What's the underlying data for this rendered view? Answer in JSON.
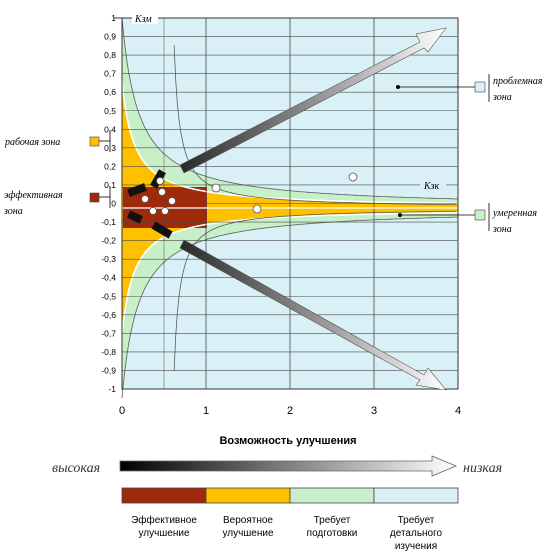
{
  "x_ticks": [
    "0",
    "1",
    "2",
    "3",
    "4"
  ],
  "y_ticks": [
    "1",
    "0,9",
    "0,8",
    "0,7",
    "0,6",
    "0,5",
    "0,4",
    "0,3",
    "0,2",
    "0,1",
    "0",
    "-0,1",
    "-0,2",
    "-0,3",
    "-0,4",
    "-0,5",
    "-0,6",
    "-0,7",
    "-0,8",
    "-0,9",
    "-1"
  ],
  "curve_labels": {
    "top": "Кзм",
    "mid": "Кзк"
  },
  "zones": {
    "work": {
      "line1": "рабочая зона",
      "color": "#ffc000"
    },
    "effective": {
      "line1": "эффективная",
      "line2": "зона",
      "color": "#9e2a0b"
    },
    "problem": {
      "line1": "проблемная",
      "line2": "зона",
      "color": "#d9f1f6"
    },
    "moderate": {
      "line1": "умеренная",
      "line2": "зона",
      "color": "#c8f0c8"
    }
  },
  "axis_title": "Возможность улучшения",
  "scale_left": "высокая",
  "scale_right": "низкая",
  "legend": [
    {
      "line1": "Эффективное",
      "line2": "улучшение",
      "color": "#9e2a0b"
    },
    {
      "line1": "Вероятное",
      "line2": "улучшение",
      "color": "#ffc000"
    },
    {
      "line1": "Требует",
      "line2": "подготовки",
      "color": "#c8f0c8"
    },
    {
      "line1": "Требует",
      "line2": "детального",
      "line3": "изучения",
      "color": "#d9f1f6"
    }
  ]
}
